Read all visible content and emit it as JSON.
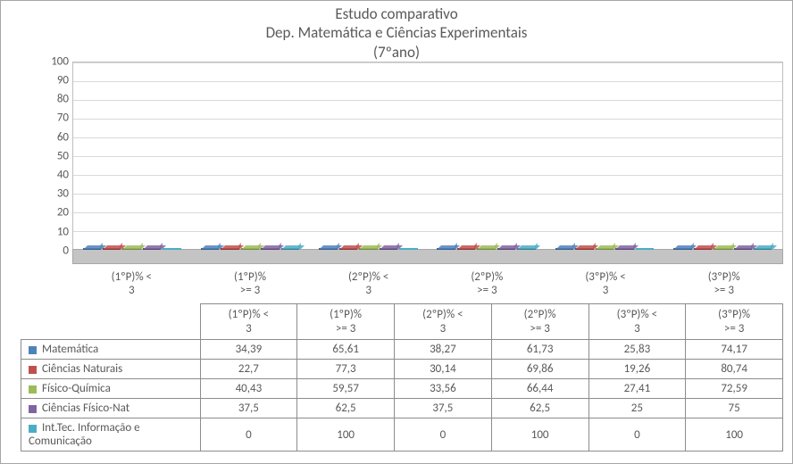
{
  "title_line1": "Estudo comparativo",
  "title_line2": "Dep. Matemática e Ciências Experimentais",
  "title_line3": "(7ºano)",
  "chart": {
    "type": "bar",
    "ylim": [
      0,
      100
    ],
    "ytick_step": 10,
    "background_color": "#ffffff",
    "grid_color": "#d9d9d9",
    "categories": [
      {
        "l1": "(1ºP)% <",
        "l2": "3"
      },
      {
        "l1": "(1ºP)%",
        "l2": ">= 3"
      },
      {
        "l1": "(2ºP)% <",
        "l2": "3"
      },
      {
        "l1": "(2ºP)%",
        "l2": ">= 3"
      },
      {
        "l1": "(3ºP)% <",
        "l2": "3"
      },
      {
        "l1": "(3ºP)%",
        "l2": ">= 3"
      }
    ],
    "series": [
      {
        "name_l1": "Matemática",
        "name_l2": "",
        "color": "#4f81bd",
        "values_txt": [
          "34,39",
          "65,61",
          "38,27",
          "61,73",
          "25,83",
          "74,17"
        ],
        "values": [
          34.39,
          65.61,
          38.27,
          61.73,
          25.83,
          74.17
        ]
      },
      {
        "name_l1": "Ciências Naturais",
        "name_l2": "",
        "color": "#c0504d",
        "values_txt": [
          "22,7",
          "77,3",
          "30,14",
          "69,86",
          "19,26",
          "80,74"
        ],
        "values": [
          22.7,
          77.3,
          30.14,
          69.86,
          19.26,
          80.74
        ]
      },
      {
        "name_l1": "Físico-Química",
        "name_l2": "",
        "color": "#9bbb59",
        "values_txt": [
          "40,43",
          "59,57",
          "33,56",
          "66,44",
          "27,41",
          "72,59"
        ],
        "values": [
          40.43,
          59.57,
          33.56,
          66.44,
          27.41,
          72.59
        ]
      },
      {
        "name_l1": "Ciências Físico-Nat",
        "name_l2": "",
        "color": "#8064a2",
        "values_txt": [
          "37,5",
          "62,5",
          "37,5",
          "62,5",
          "25",
          "75"
        ],
        "values": [
          37.5,
          62.5,
          37.5,
          62.5,
          25,
          75
        ]
      },
      {
        "name_l1": "Int.Tec. Informação e",
        "name_l2": "Comunicação",
        "color": "#4bacc6",
        "values_txt": [
          "0",
          "100",
          "0",
          "100",
          "0",
          "100"
        ],
        "values": [
          0,
          100,
          0,
          100,
          0,
          100
        ]
      }
    ]
  }
}
